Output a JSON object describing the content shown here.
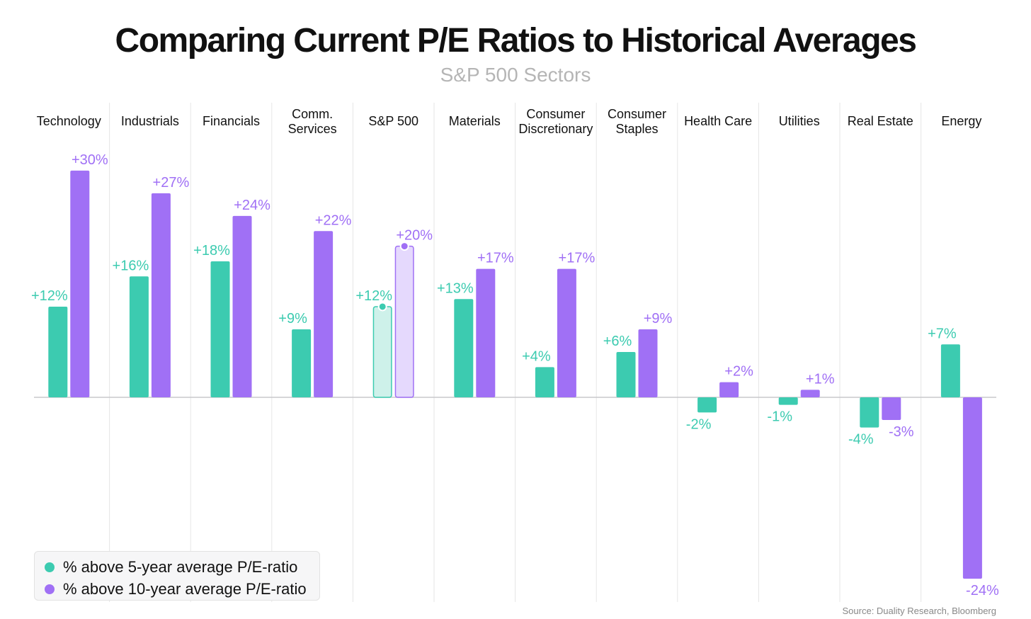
{
  "chart_data": {
    "type": "bar",
    "title": "Comparing Current P/E Ratios to Historical Averages",
    "subtitle": "S&P 500 Sectors",
    "categories": [
      "Technology",
      "Industrials",
      "Financials",
      "Comm.\nServices",
      "S&P 500",
      "Materials",
      "Consumer\nDiscretionary",
      "Consumer\nStaples",
      "Health Care",
      "Utilities",
      "Real Estate",
      "Energy"
    ],
    "series": [
      {
        "name": "% above 5-year average P/E-ratio",
        "color": "#3ccbb0",
        "values": [
          12,
          16,
          18,
          9,
          12,
          13,
          4,
          6,
          -2,
          -1,
          -4,
          7
        ],
        "labels": [
          "+12%",
          "+16%",
          "+18%",
          "+9%",
          "+12%",
          "+13%",
          "+4%",
          "+6%",
          "-2%",
          "-1%",
          "-4%",
          "+7%"
        ]
      },
      {
        "name": "% above 10-year average P/E-ratio",
        "color": "#a070f5",
        "values": [
          30,
          27,
          24,
          22,
          20,
          17,
          17,
          9,
          2,
          1,
          -3,
          -24
        ],
        "labels": [
          "+30%",
          "+27%",
          "+24%",
          "+22%",
          "+20%",
          "+17%",
          "+17%",
          "+9%",
          "+2%",
          "+1%",
          "-3%",
          "-24%"
        ]
      }
    ],
    "highlight_category": "S&P 500",
    "ylim": [
      -25,
      31
    ],
    "grid": false,
    "legend_position": "bottom-left",
    "source": "Source: Duality Research, Bloomberg"
  }
}
